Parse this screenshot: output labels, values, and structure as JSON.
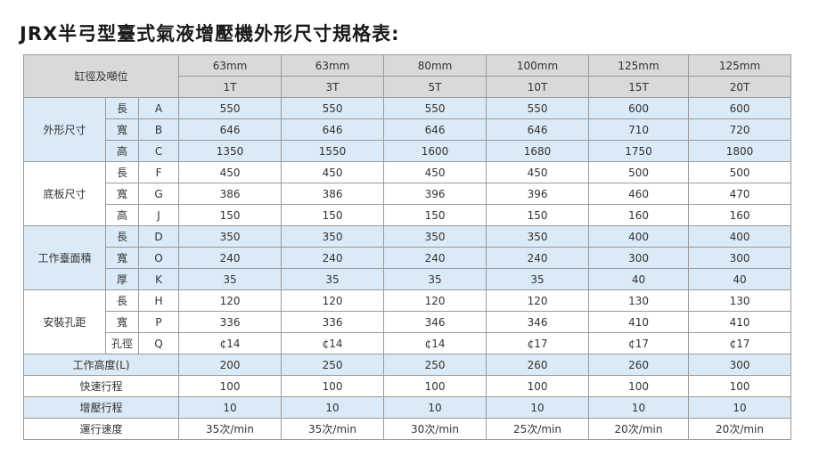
{
  "header": {
    "title": "JRX半弓型臺式氣液增壓機外形尺寸規格表:"
  },
  "table": {
    "corner": "缸徑及噸位",
    "bores": [
      "63mm",
      "63mm",
      "80mm",
      "100mm",
      "125mm",
      "125mm"
    ],
    "tonnages": [
      "1T",
      "3T",
      "5T",
      "10T",
      "15T",
      "20T"
    ],
    "groups": [
      {
        "label": "外形尺寸",
        "rows": [
          {
            "sub": "長",
            "code": "A",
            "values": [
              550,
              550,
              550,
              550,
              600,
              600
            ]
          },
          {
            "sub": "寬",
            "code": "B",
            "values": [
              646,
              646,
              646,
              646,
              710,
              720
            ]
          },
          {
            "sub": "高",
            "code": "C",
            "values": [
              1350,
              1550,
              1600,
              1680,
              1750,
              1800
            ]
          }
        ]
      },
      {
        "label": "底板尺寸",
        "rows": [
          {
            "sub": "長",
            "code": "F",
            "values": [
              450,
              450,
              450,
              450,
              500,
              500
            ]
          },
          {
            "sub": "寬",
            "code": "G",
            "values": [
              386,
              386,
              396,
              396,
              460,
              470
            ]
          },
          {
            "sub": "高",
            "code": "J",
            "values": [
              150,
              150,
              150,
              150,
              160,
              160
            ]
          }
        ]
      },
      {
        "label": "工作臺面積",
        "rows": [
          {
            "sub": "長",
            "code": "D",
            "values": [
              350,
              350,
              350,
              350,
              400,
              400
            ]
          },
          {
            "sub": "寬",
            "code": "O",
            "values": [
              240,
              240,
              240,
              240,
              300,
              300
            ]
          },
          {
            "sub": "厚",
            "code": "K",
            "values": [
              35,
              35,
              35,
              35,
              40,
              40
            ]
          }
        ]
      },
      {
        "label": "安裝孔距",
        "rows": [
          {
            "sub": "長",
            "code": "H",
            "values": [
              120,
              120,
              120,
              120,
              130,
              130
            ]
          },
          {
            "sub": "寬",
            "code": "P",
            "values": [
              336,
              336,
              346,
              346,
              410,
              410
            ]
          },
          {
            "sub": "孔徑",
            "code": "Q",
            "values": [
              "¢14",
              "¢14",
              "¢14",
              "¢17",
              "¢17",
              "¢17"
            ]
          }
        ]
      }
    ],
    "footer_rows": [
      {
        "label": "工作高度(L)",
        "values": [
          200,
          250,
          250,
          260,
          260,
          300
        ]
      },
      {
        "label": "快速行程",
        "values": [
          100,
          100,
          100,
          100,
          100,
          100
        ]
      },
      {
        "label": "增壓行程",
        "values": [
          10,
          10,
          10,
          10,
          10,
          10
        ]
      },
      {
        "label": "運行速度",
        "values": [
          "35次/min",
          "35次/min",
          "30次/min",
          "25次/min",
          "20次/min",
          "20次/min"
        ]
      }
    ]
  }
}
